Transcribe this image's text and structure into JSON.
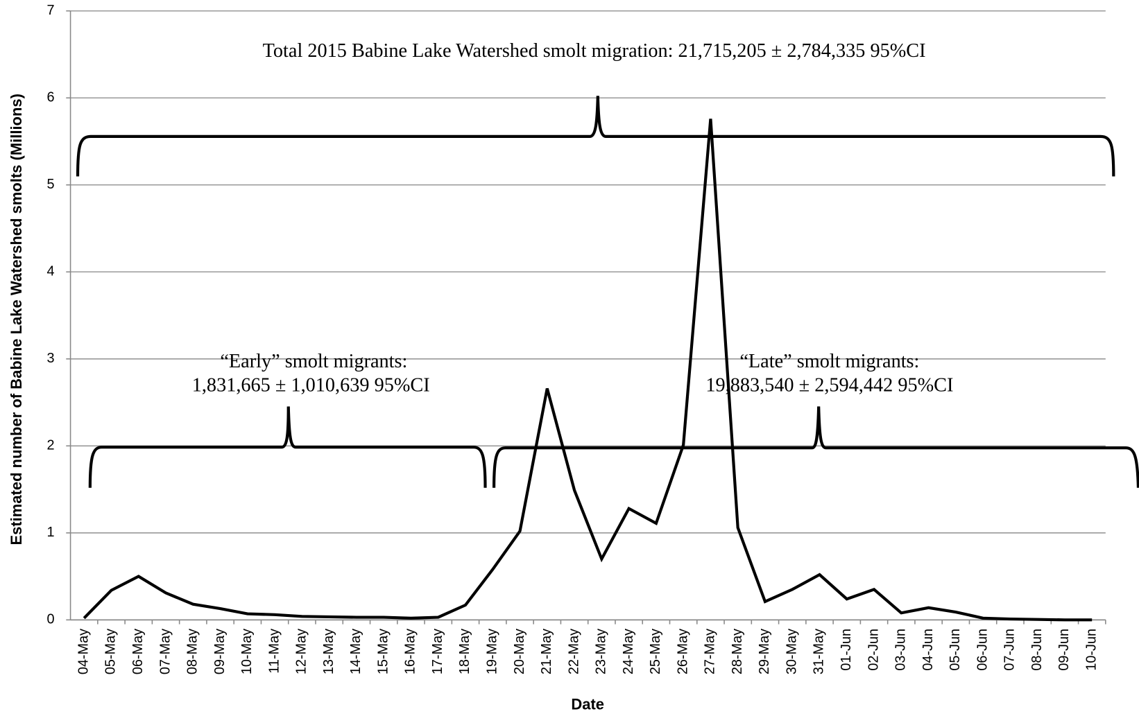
{
  "chart_data": {
    "type": "line",
    "x_label": "Date",
    "y_label": "Estimated number of Babine Lake Watershed smolts (Millions)",
    "categories": [
      "04-May",
      "05-May",
      "06-May",
      "07-May",
      "08-May",
      "09-May",
      "10-May",
      "11-May",
      "12-May",
      "13-May",
      "14-May",
      "15-May",
      "16-May",
      "17-May",
      "18-May",
      "19-May",
      "20-May",
      "21-May",
      "22-May",
      "23-May",
      "24-May",
      "25-May",
      "26-May",
      "27-May",
      "28-May",
      "29-May",
      "30-May",
      "31-May",
      "01-Jun",
      "02-Jun",
      "03-Jun",
      "04-Jun",
      "05-Jun",
      "06-Jun",
      "07-Jun",
      "08-Jun",
      "09-Jun",
      "10-Jun"
    ],
    "series": [
      {
        "color": "#000000",
        "values": [
          0.02,
          0.34,
          0.5,
          0.31,
          0.18,
          0.13,
          0.07,
          0.06,
          0.04,
          0.035,
          0.03,
          0.03,
          0.02,
          0.03,
          0.17,
          0.58,
          1.02,
          2.66,
          1.49,
          0.7,
          1.28,
          1.11,
          2.01,
          5.76,
          1.06,
          0.21,
          0.35,
          0.52,
          0.24,
          0.35,
          0.08,
          0.14,
          0.09,
          0.02,
          0.01,
          0.005,
          0,
          0
        ]
      }
    ],
    "ylim": [
      0,
      7
    ],
    "yticks": [
      0,
      1,
      2,
      3,
      4,
      5,
      6,
      7
    ],
    "grid": true,
    "annotations": {
      "total": "Total 2015 Babine Lake Watershed smolt migration: 21,715,205 ± 2,784,335 95%CI",
      "early_title": "“Early” smolt migrants:",
      "early_value": "1,831,665 ± 1,010,639 95%CI",
      "late_title": "“Late” smolt migrants:",
      "late_value": "19,883,540 ± 2,594,442 95%CI"
    }
  }
}
